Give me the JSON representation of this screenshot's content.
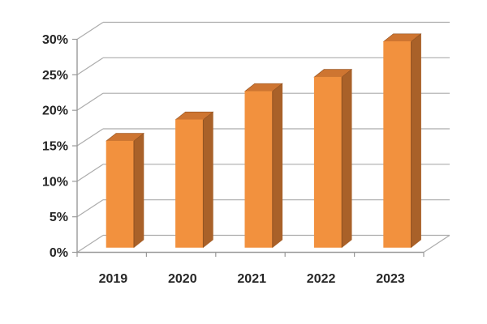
{
  "chart_data": {
    "type": "bar",
    "style": "3d-column",
    "title": "",
    "xlabel": "",
    "ylabel": "",
    "categories": [
      "2019",
      "2020",
      "2021",
      "2022",
      "2023"
    ],
    "values": [
      15,
      18,
      22,
      24,
      29
    ],
    "value_unit": "%",
    "ylim": [
      0,
      30
    ],
    "ytick_values": [
      0,
      5,
      10,
      15,
      20,
      25,
      30
    ],
    "ytick_labels": [
      "0%",
      "5%",
      "10%",
      "15%",
      "20%",
      "25%",
      "30%"
    ],
    "grid": true,
    "legend": false,
    "colors": {
      "bar_front": "#F2913E",
      "bar_side": "#A96129",
      "bar_top": "#CE7531",
      "bar_edge": "#8F5020",
      "gridline": "#ACACAC",
      "axis": "#9A9A9A",
      "text": "#262626",
      "background": "#FFFFFF"
    }
  }
}
